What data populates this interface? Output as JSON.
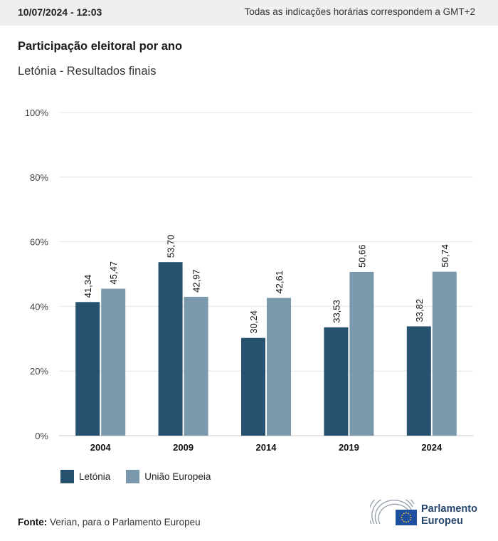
{
  "header": {
    "timestamp": "10/07/2024 - 12:03",
    "timezone_note": "Todas as indicações horárias correspondem a GMT+2"
  },
  "title": "Participação eleitoral por ano",
  "subtitle": "Letónia - Resultados finais",
  "chart_data": {
    "type": "bar",
    "categories": [
      "2004",
      "2009",
      "2014",
      "2019",
      "2024"
    ],
    "series": [
      {
        "name": "Letónia",
        "color": "#26526f",
        "values": [
          41.34,
          53.7,
          30.24,
          33.53,
          33.82
        ],
        "labels": [
          "41,34",
          "53,70",
          "30,24",
          "33,53",
          "33,82"
        ]
      },
      {
        "name": "União Europeia",
        "color": "#7b99ad",
        "values": [
          45.47,
          42.97,
          42.61,
          50.66,
          50.74
        ],
        "labels": [
          "45,47",
          "42,97",
          "42,61",
          "50,66",
          "50,74"
        ]
      }
    ],
    "yticks": [
      0,
      20,
      40,
      60,
      80,
      100
    ],
    "ytick_labels": [
      "0%",
      "20%",
      "40%",
      "60%",
      "80%",
      "100%"
    ],
    "ylim": [
      0,
      100
    ],
    "grid": true,
    "legend_position": "bottom-left"
  },
  "legend": {
    "items": [
      {
        "label": "Letónia",
        "color": "#26526f"
      },
      {
        "label": "União Europeia",
        "color": "#7b99ad"
      }
    ]
  },
  "source": {
    "prefix": "Fonte:",
    "text": "Verian, para o Parlamento Europeu"
  },
  "logo": {
    "line1": "Parlamento",
    "line2": "Europeu",
    "flag_color": "#1f4fa0",
    "star_color": "#f5cf2e"
  }
}
